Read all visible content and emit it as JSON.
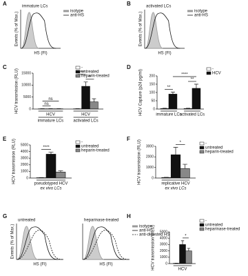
{
  "chart_data": [
    {
      "type": "flow",
      "panel": "A",
      "titles": [
        "immature LCs"
      ],
      "legend": [
        "isotype",
        "anti-HS"
      ],
      "ylabel": "Events (% of Max.)",
      "xlabel": "HS (FI)"
    },
    {
      "type": "flow",
      "panel": "B",
      "titles": [
        "activated LCs"
      ],
      "legend": [
        "isotype",
        "anti-HS"
      ],
      "ylabel": "Events (% of Max.)",
      "xlabel": "HS (FI)"
    },
    {
      "type": "bar",
      "panel": "C",
      "ylabel": "HCV transmission (RLU)",
      "ylim": [
        0,
        15000
      ],
      "yticks": [
        0,
        5000,
        10000,
        15000
      ],
      "categories": [
        "immature LCs",
        "activated LCs"
      ],
      "group_labels": [
        "HCV",
        "HCV"
      ],
      "series": [
        {
          "name": "-",
          "color": "#ffffff",
          "values": [
            100,
            100
          ],
          "errors": [
            50,
            50
          ]
        },
        {
          "name": "untreated",
          "color": "#111111",
          "values": [
            100,
            9500
          ],
          "errors": [
            50,
            1800
          ]
        },
        {
          "name": "heparin-treated",
          "color": "#888888",
          "values": [
            100,
            3000
          ],
          "errors": [
            50,
            1300
          ]
        }
      ],
      "annotations": [
        "ns",
        "ns",
        "****",
        "**"
      ]
    },
    {
      "type": "bar",
      "panel": "D",
      "ylabel": "HCV Capture (p24 pg/ml)",
      "ylim": [
        0,
        200
      ],
      "yticks": [
        0,
        50,
        100,
        150,
        200
      ],
      "categories": [
        "immature LCs",
        "activated LCs"
      ],
      "series": [
        {
          "name": "-",
          "color": "#ffffff",
          "values": [
            3,
            3
          ],
          "errors": [
            2,
            2
          ]
        },
        {
          "name": "HCV",
          "color": "#111111",
          "values": [
            90,
            125
          ],
          "errors": [
            12,
            25
          ]
        }
      ],
      "annotations": [
        "**",
        "**",
        "****"
      ]
    },
    {
      "type": "bar",
      "panel": "E",
      "ylabel": "HCV transmission (RLU)",
      "ylim": [
        0,
        5000
      ],
      "yticks": [
        0,
        1000,
        2000,
        3000,
        4000,
        5000
      ],
      "categories": [
        "pseudotyped HCV"
      ],
      "xlabel": "ex vivo LCs",
      "series": [
        {
          "name": "-",
          "color": "#ffffff",
          "values": [
            50
          ],
          "errors": [
            20
          ]
        },
        {
          "name": "untreated",
          "color": "#111111",
          "values": [
            3600
          ],
          "errors": [
            300
          ]
        },
        {
          "name": "heparin-treated",
          "color": "#888888",
          "values": [
            900
          ],
          "errors": [
            200
          ]
        }
      ],
      "annotations": [
        "****"
      ]
    },
    {
      "type": "bar",
      "panel": "F",
      "ylabel": "HCV transmission (RLU)",
      "ylim": [
        0,
        3000
      ],
      "yticks": [
        0,
        1000,
        2000,
        3000
      ],
      "categories": [
        "replicative HCV"
      ],
      "xlabel": "ex vivo LCs",
      "series": [
        {
          "name": "-",
          "color": "#ffffff",
          "values": [
            50
          ],
          "errors": [
            20
          ]
        },
        {
          "name": "untreated",
          "color": "#111111",
          "values": [
            2200
          ],
          "errors": [
            700
          ]
        },
        {
          "name": "heparin-treated",
          "color": "#888888",
          "values": [
            900
          ],
          "errors": [
            400
          ]
        }
      ],
      "annotations": [
        "*"
      ]
    },
    {
      "type": "flow",
      "panel": "G",
      "titles": [
        "untreated",
        "heparinase-treated"
      ],
      "legend": [
        "isotype",
        "anti-HS",
        "anti-digested HS"
      ],
      "ylabel": "Events (% of Max.)",
      "xlabel": "HS (FI)"
    },
    {
      "type": "bar",
      "panel": "H",
      "ylabel": "HCV transmission (RLU)",
      "ylim": [
        0,
        5000
      ],
      "yticks": [
        0,
        1000,
        2000,
        3000,
        4000,
        5000
      ],
      "categories": [
        "HCV"
      ],
      "series": [
        {
          "name": "-",
          "color": "#ffffff",
          "values": [
            50
          ],
          "errors": [
            20
          ]
        },
        {
          "name": "untreated",
          "color": "#111111",
          "values": [
            3000
          ],
          "errors": [
            600
          ]
        },
        {
          "name": "heparinase-treated",
          "color": "#888888",
          "values": [
            2000
          ],
          "errors": [
            400
          ]
        }
      ],
      "annotations": [
        "*"
      ]
    }
  ]
}
